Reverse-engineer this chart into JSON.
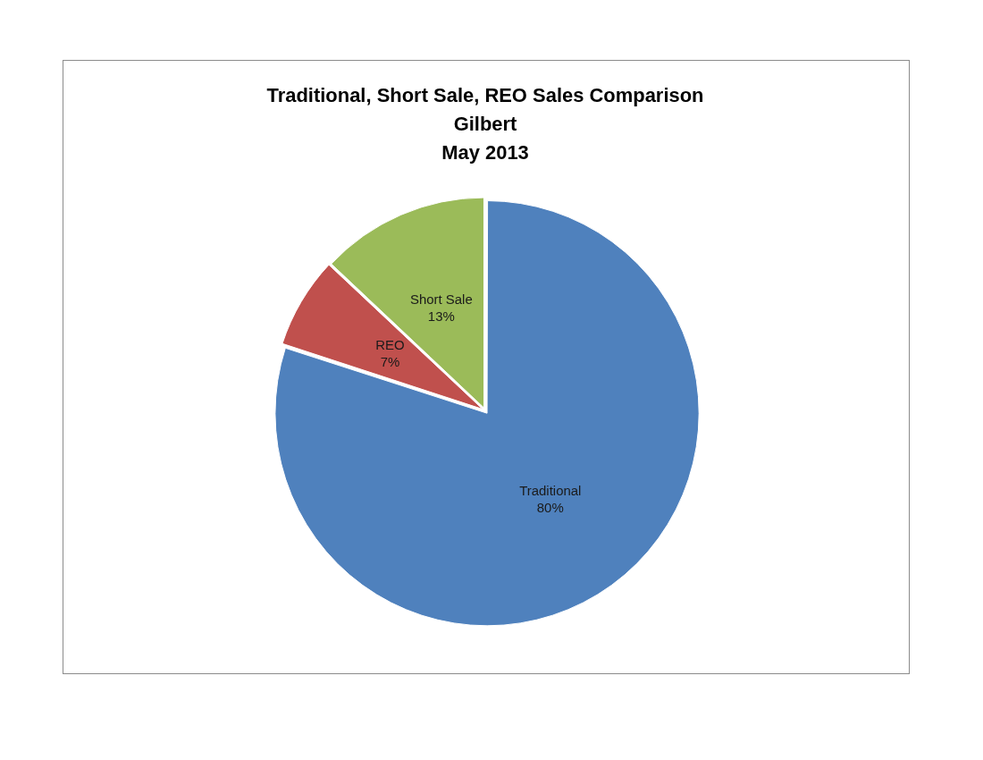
{
  "chart_data": {
    "type": "pie",
    "title": "Traditional, Short Sale, REO Sales Comparison\nGilbert\nMay 2013",
    "categories": [
      "Traditional",
      "REO",
      "Short Sale"
    ],
    "values": [
      80,
      7,
      13
    ],
    "value_labels": [
      "80%",
      "7%",
      "13%"
    ],
    "colors": [
      "#4f81bd",
      "#c0504d",
      "#9bbb59"
    ],
    "legend": false
  }
}
